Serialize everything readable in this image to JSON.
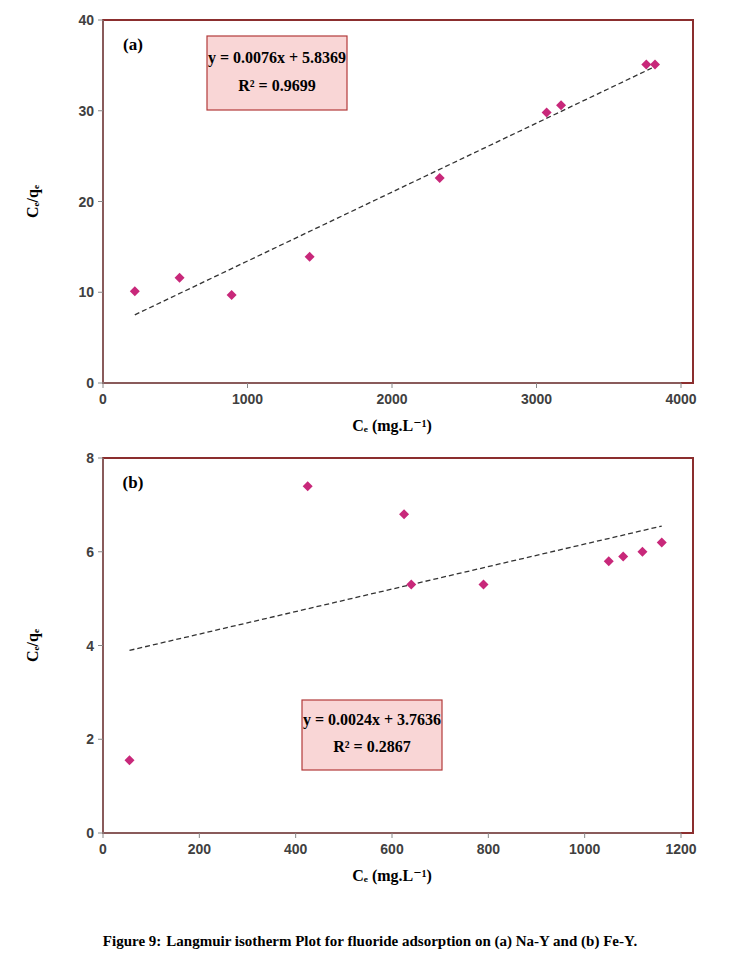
{
  "chart_data": [
    {
      "type": "scatter",
      "panel_label": "(a)",
      "x_label": "Cₑ (mg.L⁻¹)",
      "y_label": "Cₑ/qₑ",
      "x": [
        220,
        530,
        890,
        1430,
        2330,
        3070,
        3170,
        3760,
        3820
      ],
      "values": [
        10.1,
        11.6,
        9.7,
        13.9,
        22.6,
        29.8,
        30.6,
        35.1,
        35.1
      ],
      "color": "#c8287a",
      "marker": "diamond",
      "xlim": [
        0,
        4000
      ],
      "xticks": [
        0,
        1000,
        2000,
        3000,
        4000
      ],
      "ylim": [
        0,
        40
      ],
      "yticks": [
        0,
        10,
        20,
        30,
        40
      ],
      "grid": false,
      "trendline": {
        "slope": 0.0076,
        "intercept": 5.8369,
        "line_style": "dashed",
        "equation": "y = 0.0076x + 5.8369",
        "r_squared_label": "R² = 0.9699"
      }
    },
    {
      "type": "scatter",
      "panel_label": "(b)",
      "x_label": "Cₑ (mg.L⁻¹)",
      "y_label": "Cₑ/qₑ",
      "x": [
        55,
        425,
        625,
        640,
        790,
        1050,
        1080,
        1120,
        1160
      ],
      "values": [
        1.55,
        7.4,
        6.8,
        5.3,
        5.3,
        5.8,
        5.9,
        6.0,
        6.2
      ],
      "color": "#c8287a",
      "marker": "diamond",
      "xlim": [
        0,
        1200
      ],
      "xticks": [
        0,
        200,
        400,
        600,
        800,
        1000,
        1200
      ],
      "ylim": [
        0,
        8
      ],
      "yticks": [
        0,
        2,
        4,
        6,
        8
      ],
      "grid": false,
      "trendline": {
        "slope": 0.0024,
        "intercept": 3.7636,
        "line_style": "dashed",
        "equation": "y = 0.0024x + 3.7636",
        "r_squared_label": "R² = 0.2867"
      }
    }
  ],
  "caption": {
    "label": "Figure 9:",
    "text": "Langmuir isotherm Plot for fluoride adsorption on (a) Na-Y and (b) Fe-Y."
  }
}
